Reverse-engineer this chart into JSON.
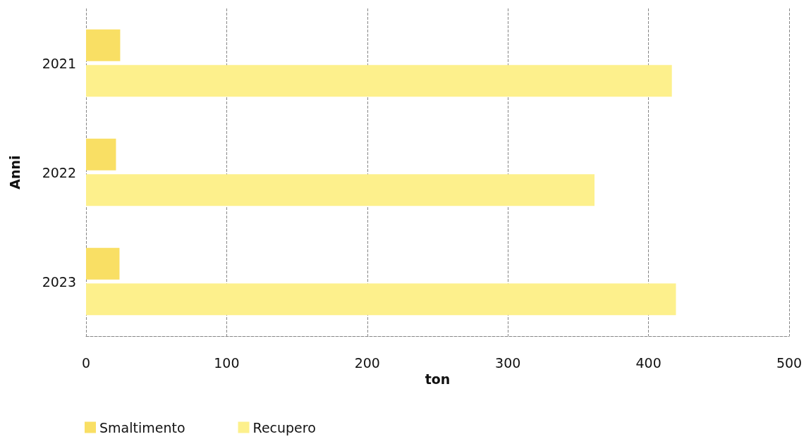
{
  "chart_data": {
    "type": "bar",
    "orientation": "horizontal",
    "xlabel": "ton",
    "ylabel": "Anni",
    "categories": [
      "2021",
      "2022",
      "2023"
    ],
    "series": [
      {
        "name": "Smaltimento",
        "color": "#f9df64",
        "values": [
          24.3,
          21.3,
          23.8
        ]
      },
      {
        "name": "Recupero",
        "color": "#fdf08c",
        "values": [
          416.6,
          361.6,
          419.5
        ]
      }
    ],
    "xlim": [
      0,
      500
    ],
    "xticks": [
      0,
      100,
      200,
      300,
      400,
      500
    ],
    "grid": "x",
    "legend": "bottom left"
  }
}
